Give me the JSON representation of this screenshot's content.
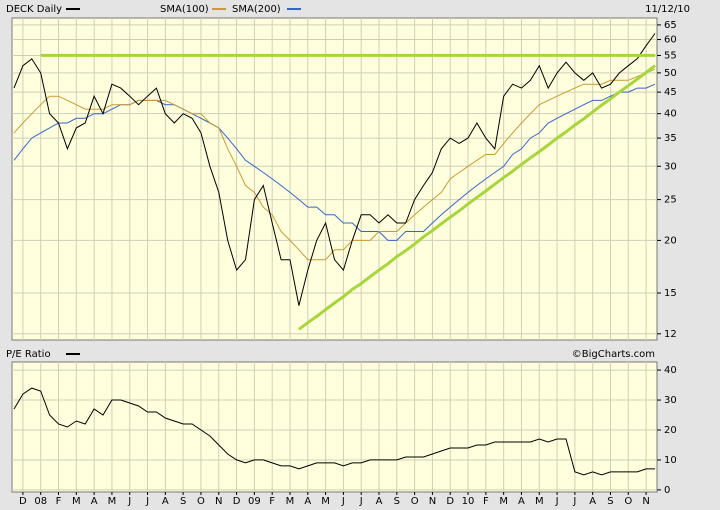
{
  "chart_data": [
    {
      "type": "line",
      "log_scale": true,
      "grid": true,
      "date": "11/12/10",
      "ylim": [
        11.6,
        67.5
      ],
      "yticks": [
        12,
        15,
        20,
        25,
        30,
        35,
        40,
        45,
        50,
        55,
        60,
        65
      ],
      "series": [
        {
          "name": "DECK Daily",
          "color": "#000000",
          "values": [
            46,
            52,
            54,
            50,
            40,
            38,
            33,
            37,
            38,
            44,
            40,
            47,
            46,
            44,
            42,
            44,
            46,
            40,
            38,
            40,
            39,
            36,
            30,
            26,
            20,
            17,
            18,
            25,
            27,
            22,
            18,
            18,
            14,
            17,
            20,
            22,
            18,
            17,
            20,
            23,
            23,
            22,
            23,
            22,
            22,
            25,
            27,
            29,
            33,
            35,
            34,
            35,
            38,
            35,
            33,
            44,
            47,
            46,
            48,
            52,
            46,
            50,
            53,
            50,
            48,
            50,
            46,
            47,
            50,
            52,
            54,
            58,
            62
          ]
        },
        {
          "name": "SMA(100)",
          "color": "#cc9933",
          "values": [
            36,
            38,
            40,
            42,
            44,
            44,
            43,
            42,
            41,
            41,
            41,
            42,
            42,
            42,
            43,
            43,
            43,
            43,
            42,
            41,
            40,
            40,
            38,
            37,
            33,
            30,
            27,
            26,
            24,
            23,
            21,
            20,
            19,
            18,
            18,
            18,
            19,
            19,
            20,
            20,
            20,
            21,
            21,
            21,
            22,
            23,
            24,
            25,
            26,
            28,
            29,
            30,
            31,
            32,
            32,
            34,
            36,
            38,
            40,
            42,
            43,
            44,
            45,
            46,
            47,
            47,
            47,
            48,
            48,
            48,
            49,
            50,
            51
          ]
        },
        {
          "name": "SMA(200)",
          "color": "#3366cc",
          "values": [
            31,
            33,
            35,
            36,
            37,
            38,
            38,
            39,
            39,
            40,
            40,
            41,
            42,
            42,
            43,
            43,
            43,
            42,
            42,
            41,
            40,
            39,
            38,
            37,
            35,
            33,
            31,
            30,
            29,
            28,
            27,
            26,
            25,
            24,
            24,
            23,
            23,
            22,
            22,
            21,
            21,
            21,
            20,
            20,
            21,
            21,
            21,
            22,
            23,
            24,
            25,
            26,
            27,
            28,
            29,
            30,
            32,
            33,
            35,
            36,
            38,
            39,
            40,
            41,
            42,
            43,
            43,
            44,
            45,
            45,
            46,
            46,
            47
          ]
        }
      ],
      "trendlines": [
        {
          "color": "#a6d63a",
          "values": [
            null,
            null,
            null,
            55,
            55,
            55,
            55,
            55,
            55,
            55,
            55,
            55,
            55,
            55,
            55,
            55,
            55,
            55,
            55,
            55,
            55,
            55,
            55,
            55,
            55,
            55,
            55,
            55,
            55,
            55,
            55,
            55,
            55,
            55,
            55,
            55,
            55,
            55,
            55,
            55,
            55,
            55,
            55,
            55,
            55,
            55,
            55,
            55,
            55,
            55,
            55,
            55,
            55,
            55,
            55,
            55,
            55,
            55,
            55,
            55,
            55,
            55,
            55,
            55,
            55,
            55,
            55,
            55,
            55,
            55,
            55,
            55,
            55
          ]
        },
        {
          "color": "#a6d63a",
          "values": [
            null,
            null,
            null,
            null,
            null,
            null,
            null,
            null,
            null,
            null,
            null,
            null,
            null,
            null,
            null,
            null,
            null,
            null,
            null,
            null,
            null,
            null,
            null,
            null,
            null,
            null,
            null,
            null,
            null,
            null,
            null,
            null,
            12.3,
            12.75,
            13.2,
            13.7,
            14.2,
            14.7,
            15.3,
            15.8,
            16.4,
            17.0,
            17.6,
            18.3,
            18.9,
            19.6,
            20.4,
            21.1,
            21.9,
            22.7,
            23.5,
            24.4,
            25.3,
            26.2,
            27.2,
            28.2,
            29.2,
            30.3,
            31.4,
            32.5,
            33.7,
            35.0,
            36.2,
            37.6,
            38.9,
            40.4,
            41.9,
            43.4,
            45.0,
            46.6,
            48.3,
            50.1,
            52.0
          ]
        }
      ]
    },
    {
      "type": "line",
      "grid": true,
      "source": "©BigCharts.com",
      "categories": [
        null,
        "D",
        null,
        "08",
        null,
        "F",
        null,
        "M",
        null,
        "A",
        null,
        "M",
        null,
        "J",
        null,
        "J",
        null,
        "A",
        null,
        "S",
        null,
        "O",
        null,
        "N",
        null,
        "D",
        null,
        "09",
        null,
        "F",
        null,
        "M",
        null,
        "A",
        null,
        "M",
        null,
        "J",
        null,
        "J",
        null,
        "A",
        null,
        "S",
        null,
        "O",
        null,
        "N",
        null,
        "D",
        null,
        "10",
        null,
        "F",
        null,
        "M",
        null,
        "A",
        null,
        "M",
        null,
        "J",
        null,
        "J",
        null,
        "A",
        null,
        "S",
        null,
        "O",
        null,
        "N",
        null
      ],
      "ylim": [
        -0.7,
        42.7
      ],
      "yticks": [
        0,
        10,
        20,
        30,
        40
      ],
      "series": [
        {
          "name": "P/E Ratio",
          "color": "#000000",
          "values": [
            27,
            32,
            34,
            33,
            25,
            22,
            21,
            23,
            22,
            27,
            25,
            30,
            30,
            29,
            28,
            26,
            26,
            24,
            23,
            22,
            22,
            20,
            18,
            15,
            12,
            10,
            9,
            10,
            10,
            9,
            8,
            8,
            7,
            8,
            9,
            9,
            9,
            8,
            9,
            9,
            10,
            10,
            10,
            10,
            11,
            11,
            11,
            12,
            13,
            14,
            14,
            14,
            15,
            15,
            16,
            16,
            16,
            16,
            16,
            17,
            16,
            17,
            17,
            6,
            5,
            6,
            5,
            6,
            6,
            6,
            6,
            7,
            7
          ]
        }
      ]
    }
  ]
}
